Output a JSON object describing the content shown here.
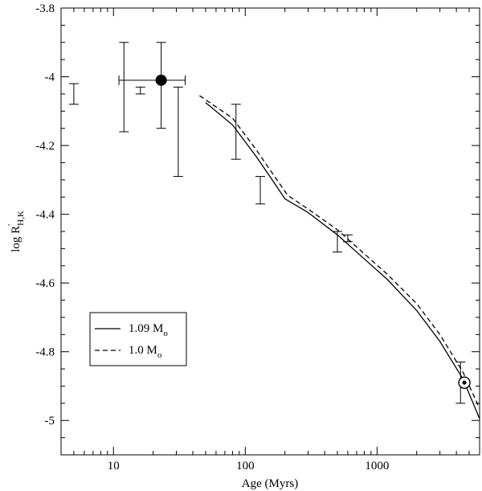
{
  "chart_data": {
    "type": "line",
    "xlabel": "Age (Myrs)",
    "ylabel": {
      "base": "log R",
      "prime": "'",
      "sub": "H,K"
    },
    "x_scale": "log",
    "xlim": [
      4,
      6000
    ],
    "ylim": [
      -5.1,
      -3.8
    ],
    "x_ticks": [
      {
        "value": 10,
        "label": "10"
      },
      {
        "value": 100,
        "label": "100"
      },
      {
        "value": 1000,
        "label": "1000"
      }
    ],
    "y_ticks": [
      {
        "value": -3.8,
        "label": "-3.8"
      },
      {
        "value": -4.0,
        "label": "-4"
      },
      {
        "value": -4.2,
        "label": "-4.2"
      },
      {
        "value": -4.4,
        "label": "-4.4"
      },
      {
        "value": -4.6,
        "label": "-4.6"
      },
      {
        "value": -4.8,
        "label": "-4.8"
      },
      {
        "value": -5.0,
        "label": "-5"
      }
    ],
    "grid": false,
    "legend_position": "bottom-left",
    "series": [
      {
        "name": "1.09 M",
        "name_sub": "o",
        "style": "solid",
        "x": [
          50,
          80,
          120,
          160,
          200,
          300,
          500,
          800,
          1200,
          2000,
          3000,
          4500,
          6000
        ],
        "y": [
          -4.075,
          -4.14,
          -4.23,
          -4.3,
          -4.355,
          -4.395,
          -4.46,
          -4.53,
          -4.59,
          -4.68,
          -4.77,
          -4.88,
          -4.995
        ]
      },
      {
        "name": "1.0 M",
        "name_sub": "o",
        "style": "dashed",
        "x": [
          45,
          80,
          120,
          160,
          210,
          300,
          500,
          800,
          1200,
          2000,
          3000,
          4500,
          6000
        ],
        "y": [
          -4.055,
          -4.12,
          -4.21,
          -4.28,
          -4.345,
          -4.385,
          -4.445,
          -4.515,
          -4.575,
          -4.66,
          -4.75,
          -4.86,
          -4.965
        ]
      }
    ],
    "error_bars": [
      {
        "x": 5,
        "y_low": -4.08,
        "y_high": -4.02
      },
      {
        "x": 12,
        "y_low": -4.16,
        "y_high": -3.9
      },
      {
        "x": 16,
        "y_low": -4.05,
        "y_high": -4.03
      },
      {
        "x": 23,
        "y_low": -4.15,
        "y_high": -3.9
      },
      {
        "x": 31,
        "y_low": -4.29,
        "y_high": -4.03
      },
      {
        "x": 85,
        "y_low": -4.24,
        "y_high": -4.08
      },
      {
        "x": 130,
        "y_low": -4.37,
        "y_high": -4.29
      },
      {
        "x": 500,
        "y_low": -4.51,
        "y_high": -4.45
      },
      {
        "x": 600,
        "y_low": -4.48,
        "y_high": -4.46
      },
      {
        "x": 4300,
        "y_low": -4.95,
        "y_high": -4.83
      }
    ],
    "filled_point": {
      "x": 23,
      "y": -4.01,
      "x_low": 11,
      "x_high": 35
    },
    "sun_point": {
      "x": 4600,
      "y": -4.89,
      "symbol": "sun"
    }
  }
}
